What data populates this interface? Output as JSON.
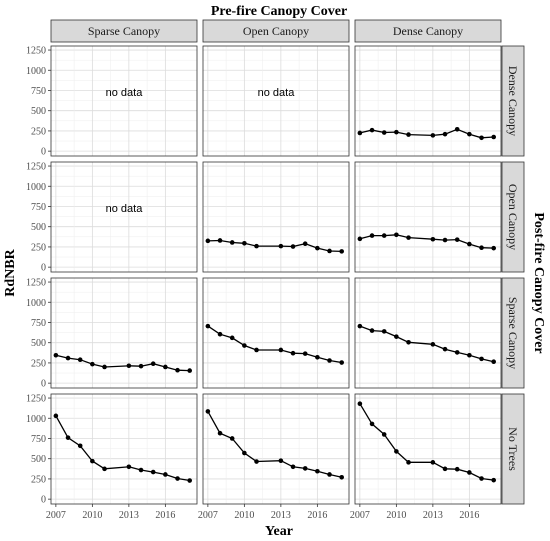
{
  "chart_data": {
    "type": "line",
    "title": "Pre-fire Canopy Cover",
    "xlabel": "Year",
    "ylabel": "RdNBR",
    "right_label": "Post-fire Canopy Cover",
    "col_labels": [
      "Sparse Canopy",
      "Open Canopy",
      "Dense Canopy"
    ],
    "row_labels": [
      "Dense Canopy",
      "Open Canopy",
      "Sparse Canopy",
      "No Trees"
    ],
    "xlim": [
      2006.6,
      2018.6
    ],
    "ylim": [
      -60,
      1300
    ],
    "x_ticks": [
      2007,
      2010,
      2013,
      2016
    ],
    "y_ticks": [
      0,
      250,
      500,
      750,
      1000,
      1250
    ],
    "grid": true,
    "nodata_label": "no data",
    "panels": [
      {
        "row": 0,
        "col": 0,
        "nodata": true
      },
      {
        "row": 0,
        "col": 1,
        "nodata": true
      },
      {
        "row": 0,
        "col": 2,
        "x": [
          2007,
          2008,
          2009,
          2010,
          2011,
          2013,
          2014,
          2015,
          2016,
          2017,
          2018
        ],
        "y": [
          225,
          260,
          230,
          235,
          205,
          195,
          210,
          270,
          210,
          165,
          175
        ]
      },
      {
        "row": 1,
        "col": 0,
        "nodata": true
      },
      {
        "row": 1,
        "col": 1,
        "x": [
          2007,
          2008,
          2009,
          2010,
          2011,
          2013,
          2014,
          2015,
          2016,
          2017,
          2018
        ],
        "y": [
          325,
          330,
          305,
          295,
          260,
          260,
          255,
          290,
          235,
          200,
          195
        ]
      },
      {
        "row": 1,
        "col": 2,
        "x": [
          2007,
          2008,
          2009,
          2010,
          2011,
          2013,
          2014,
          2015,
          2016,
          2017,
          2018
        ],
        "y": [
          350,
          390,
          390,
          400,
          365,
          345,
          335,
          340,
          285,
          240,
          235
        ]
      },
      {
        "row": 2,
        "col": 0,
        "x": [
          2007,
          2008,
          2009,
          2010,
          2011,
          2013,
          2014,
          2015,
          2016,
          2017,
          2018
        ],
        "y": [
          345,
          310,
          290,
          235,
          200,
          215,
          210,
          240,
          200,
          160,
          155
        ]
      },
      {
        "row": 2,
        "col": 1,
        "x": [
          2007,
          2008,
          2009,
          2010,
          2011,
          2013,
          2014,
          2015,
          2016,
          2017,
          2018
        ],
        "y": [
          705,
          605,
          560,
          465,
          410,
          410,
          370,
          365,
          320,
          280,
          255
        ]
      },
      {
        "row": 2,
        "col": 2,
        "x": [
          2007,
          2008,
          2009,
          2010,
          2011,
          2013,
          2014,
          2015,
          2016,
          2017,
          2018
        ],
        "y": [
          705,
          650,
          640,
          575,
          505,
          480,
          420,
          380,
          345,
          300,
          265
        ]
      },
      {
        "row": 3,
        "col": 0,
        "x": [
          2007,
          2008,
          2009,
          2010,
          2011,
          2013,
          2014,
          2015,
          2016,
          2017,
          2018
        ],
        "y": [
          1030,
          760,
          660,
          470,
          375,
          400,
          360,
          335,
          305,
          255,
          230
        ]
      },
      {
        "row": 3,
        "col": 1,
        "x": [
          2007,
          2008,
          2009,
          2010,
          2011,
          2013,
          2014,
          2015,
          2016,
          2017,
          2018
        ],
        "y": [
          1085,
          815,
          750,
          570,
          465,
          475,
          400,
          380,
          345,
          305,
          270
        ]
      },
      {
        "row": 3,
        "col": 2,
        "x": [
          2007,
          2008,
          2009,
          2010,
          2011,
          2013,
          2014,
          2015,
          2016,
          2017,
          2018
        ],
        "y": [
          1180,
          930,
          800,
          590,
          455,
          455,
          375,
          370,
          330,
          255,
          235
        ]
      }
    ]
  }
}
